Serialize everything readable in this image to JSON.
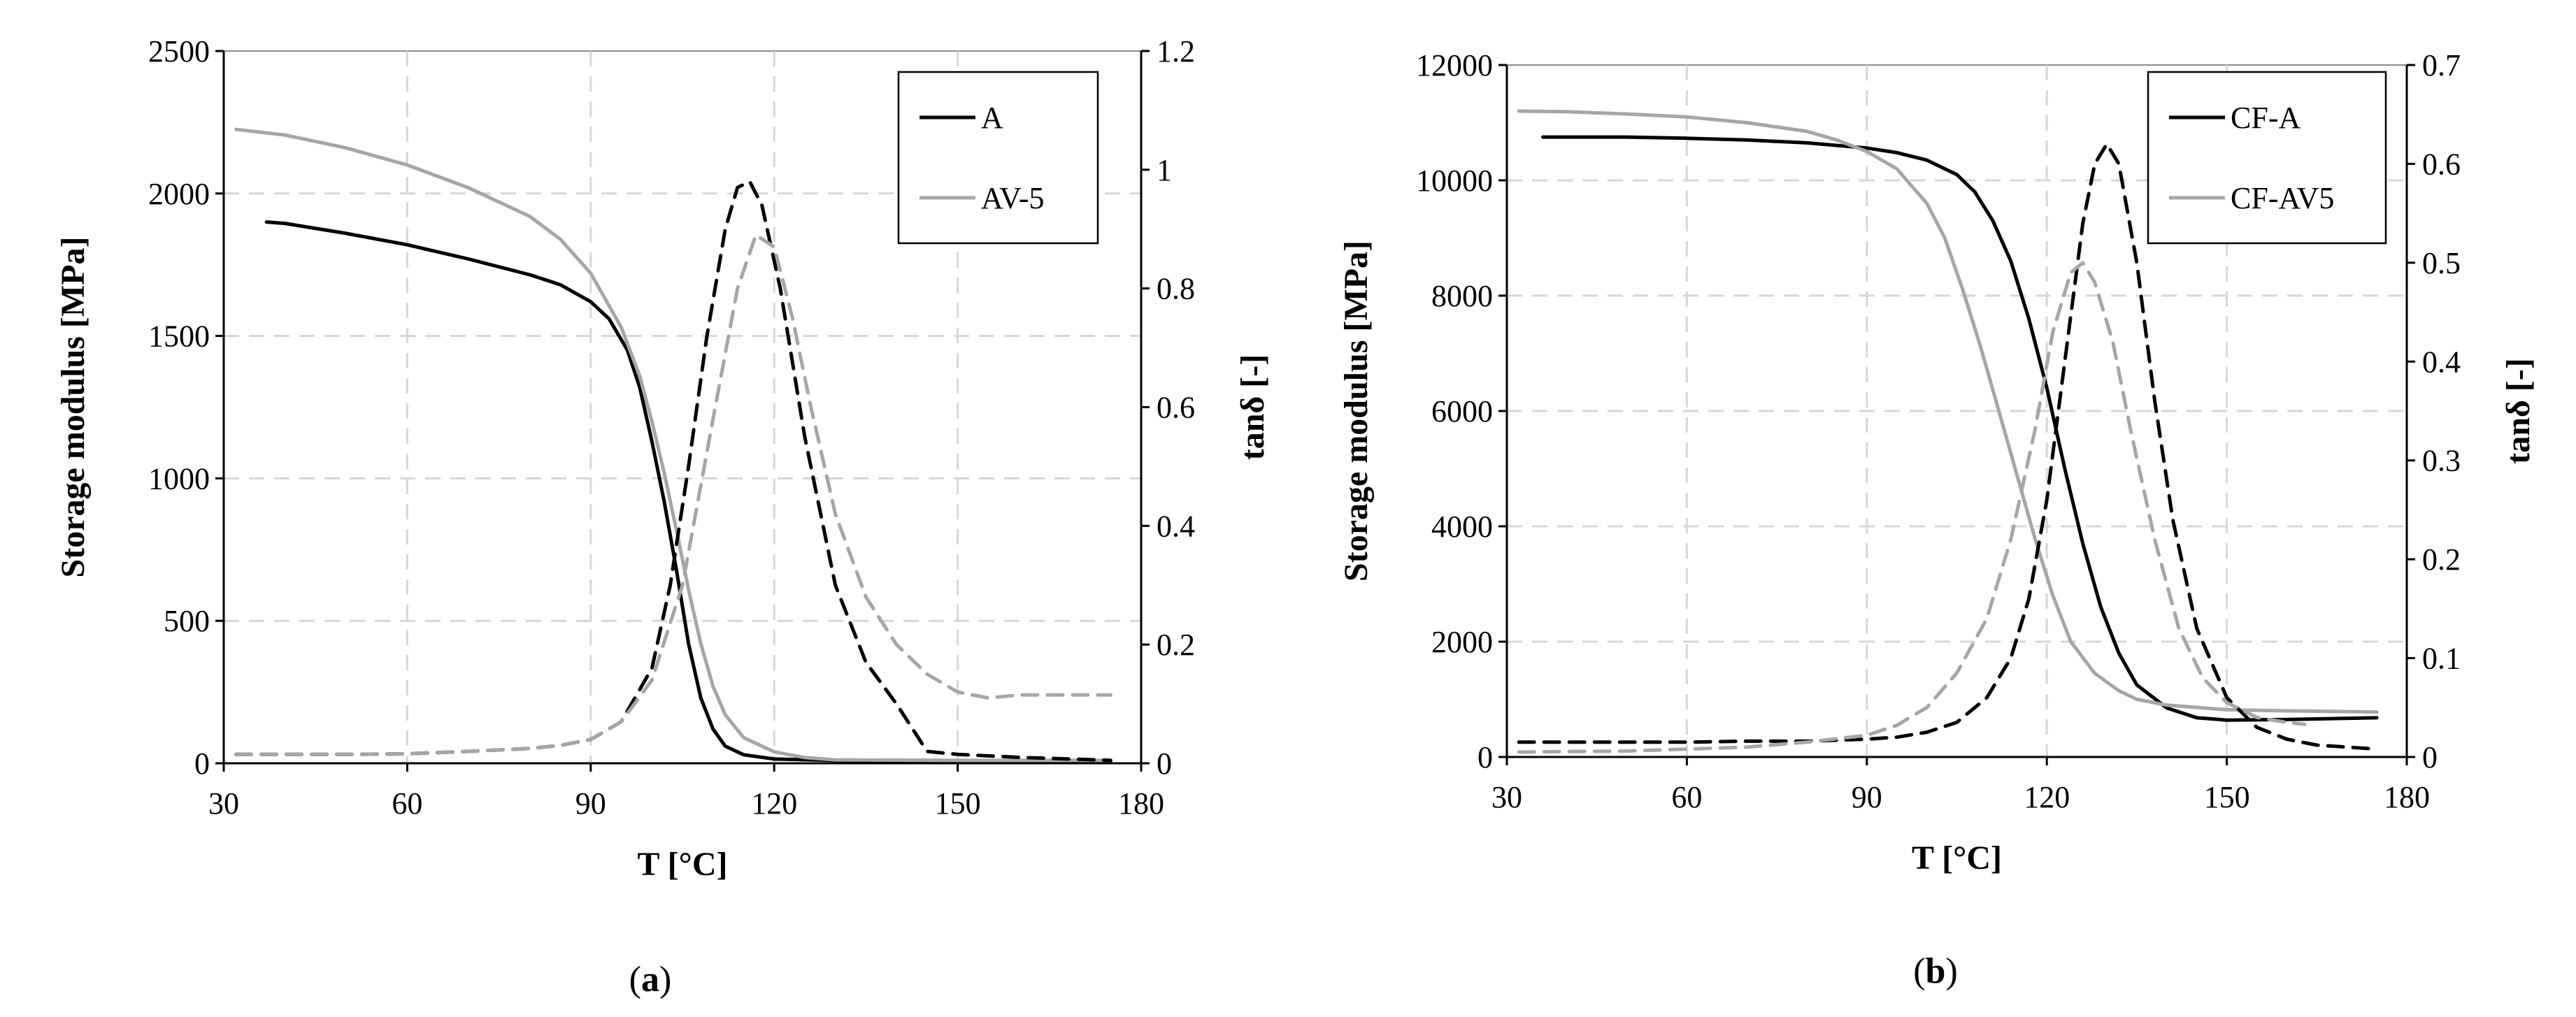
{
  "chart_data": [
    {
      "type": "line",
      "panel_label": "a",
      "xlabel": "T [°C]",
      "ylabel": "Storage modulus [MPa]",
      "y2label": "tanδ [-]",
      "xlim": [
        30,
        180
      ],
      "ylim": [
        0,
        2500
      ],
      "y2lim": [
        0,
        1.2
      ],
      "xticks": [
        "30",
        "60",
        "90",
        "120",
        "150",
        "180"
      ],
      "yticks": [
        "0",
        "500",
        "1000",
        "1500",
        "2000",
        "2500"
      ],
      "y2ticks": [
        "0",
        "0.2",
        "0.4",
        "0.6",
        "0.8",
        "1",
        "1.2"
      ],
      "grid": true,
      "legend_position": "top-right",
      "legend": [
        {
          "name": "A",
          "color": "#000000"
        },
        {
          "name": "AV-5",
          "color": "#a6a6a6"
        }
      ],
      "series": [
        {
          "name": "A",
          "quantity": "storage modulus",
          "axis": "left",
          "color": "#000000",
          "dash": "solid",
          "x": [
            37,
            40,
            50,
            60,
            70,
            80,
            85,
            90,
            93,
            96,
            98,
            100,
            102,
            104,
            106,
            108,
            110,
            112,
            115,
            120,
            130,
            150,
            175
          ],
          "y": [
            1900,
            1895,
            1860,
            1820,
            1770,
            1715,
            1680,
            1620,
            1560,
            1450,
            1320,
            1130,
            920,
            680,
            420,
            230,
            120,
            60,
            30,
            15,
            10,
            8,
            8
          ]
        },
        {
          "name": "AV-5",
          "quantity": "storage modulus",
          "axis": "left",
          "color": "#a6a6a6",
          "dash": "solid",
          "x": [
            32,
            40,
            50,
            60,
            70,
            80,
            85,
            90,
            95,
            98,
            100,
            102,
            104,
            106,
            108,
            110,
            112,
            115,
            120,
            125,
            130,
            150,
            175
          ],
          "y": [
            2225,
            2205,
            2160,
            2100,
            2020,
            1920,
            1840,
            1720,
            1530,
            1360,
            1200,
            1020,
            820,
            610,
            420,
            270,
            170,
            90,
            40,
            20,
            12,
            10,
            10
          ]
        },
        {
          "name": "A",
          "quantity": "tanδ",
          "axis": "right",
          "color": "#000000",
          "dash": "dashed",
          "x": [
            32,
            50,
            60,
            70,
            80,
            85,
            90,
            95,
            100,
            103,
            106,
            109,
            112,
            114,
            116,
            118,
            121,
            125,
            130,
            135,
            140,
            145,
            150,
            160,
            175
          ],
          "y": [
            0.015,
            0.015,
            0.016,
            0.02,
            0.025,
            0.03,
            0.04,
            0.07,
            0.16,
            0.3,
            0.5,
            0.72,
            0.9,
            0.97,
            0.98,
            0.94,
            0.8,
            0.55,
            0.3,
            0.17,
            0.1,
            0.02,
            0.015,
            0.01,
            0.005
          ]
        },
        {
          "name": "AV-5",
          "quantity": "tanδ",
          "axis": "right",
          "color": "#a6a6a6",
          "dash": "dashed",
          "x": [
            32,
            50,
            60,
            70,
            80,
            85,
            90,
            95,
            100,
            105,
            110,
            114,
            117,
            120,
            123,
            126,
            130,
            135,
            140,
            145,
            150,
            155,
            160,
            175
          ],
          "y": [
            0.015,
            0.015,
            0.016,
            0.02,
            0.025,
            0.03,
            0.04,
            0.07,
            0.14,
            0.3,
            0.58,
            0.8,
            0.89,
            0.87,
            0.75,
            0.6,
            0.42,
            0.28,
            0.2,
            0.15,
            0.12,
            0.11,
            0.115,
            0.115
          ]
        }
      ]
    },
    {
      "type": "line",
      "panel_label": "b",
      "xlabel": "T [°C]",
      "ylabel": "Storage modulus [MPa]",
      "y2label": "tanδ [-]",
      "xlim": [
        30,
        180
      ],
      "ylim": [
        0,
        12000
      ],
      "y2lim": [
        0,
        0.7
      ],
      "xticks": [
        "30",
        "60",
        "90",
        "120",
        "150",
        "180"
      ],
      "yticks": [
        "0",
        "2000",
        "4000",
        "6000",
        "8000",
        "10000",
        "12000"
      ],
      "y2ticks": [
        "0",
        "0.1",
        "0.2",
        "0.3",
        "0.4",
        "0.5",
        "0.6",
        "0.7"
      ],
      "grid": true,
      "legend_position": "top-right",
      "legend": [
        {
          "name": "CF-A",
          "color": "#000000"
        },
        {
          "name": "CF-AV5",
          "color": "#a6a6a6"
        }
      ],
      "series": [
        {
          "name": "CF-A",
          "quantity": "storage modulus",
          "axis": "left",
          "color": "#000000",
          "dash": "solid",
          "x": [
            36,
            50,
            60,
            70,
            80,
            90,
            95,
            100,
            105,
            108,
            111,
            114,
            117,
            120,
            123,
            126,
            129,
            132,
            135,
            140,
            145,
            150,
            160,
            175
          ],
          "y": [
            10750,
            10750,
            10730,
            10700,
            10650,
            10560,
            10480,
            10350,
            10100,
            9800,
            9300,
            8600,
            7600,
            6400,
            5000,
            3700,
            2600,
            1800,
            1250,
            850,
            680,
            640,
            650,
            680
          ]
        },
        {
          "name": "CF-AV5",
          "quantity": "storage modulus",
          "axis": "left",
          "color": "#a6a6a6",
          "dash": "solid",
          "x": [
            32,
            40,
            50,
            60,
            70,
            80,
            85,
            90,
            95,
            100,
            103,
            106,
            109,
            112,
            115,
            118,
            121,
            124,
            128,
            132,
            135,
            140,
            150,
            160,
            175
          ],
          "y": [
            11200,
            11190,
            11150,
            11100,
            11000,
            10850,
            10700,
            10500,
            10200,
            9600,
            9000,
            8100,
            7100,
            6000,
            4900,
            3800,
            2800,
            2000,
            1450,
            1150,
            1000,
            900,
            820,
            800,
            780
          ]
        },
        {
          "name": "CF-A",
          "quantity": "tanδ",
          "axis": "right",
          "color": "#000000",
          "dash": "dashed",
          "x": [
            32,
            50,
            60,
            70,
            80,
            90,
            95,
            100,
            105,
            110,
            114,
            117,
            120,
            123,
            126,
            128,
            130,
            132,
            135,
            138,
            141,
            145,
            150,
            155,
            160,
            165,
            175
          ],
          "y": [
            0.015,
            0.015,
            0.015,
            0.016,
            0.016,
            0.018,
            0.02,
            0.025,
            0.035,
            0.06,
            0.1,
            0.16,
            0.26,
            0.4,
            0.54,
            0.6,
            0.62,
            0.6,
            0.5,
            0.36,
            0.24,
            0.13,
            0.06,
            0.03,
            0.018,
            0.012,
            0.008
          ]
        },
        {
          "name": "CF-AV5",
          "quantity": "tanδ",
          "axis": "right",
          "color": "#a6a6a6",
          "dash": "dashed",
          "x": [
            32,
            50,
            60,
            70,
            80,
            90,
            95,
            100,
            105,
            110,
            114,
            118,
            121,
            124,
            126,
            128,
            131,
            134,
            138,
            142,
            146,
            150,
            155,
            160,
            163
          ],
          "y": [
            0.005,
            0.006,
            0.008,
            0.01,
            0.015,
            0.022,
            0.032,
            0.05,
            0.085,
            0.14,
            0.22,
            0.33,
            0.43,
            0.49,
            0.5,
            0.48,
            0.42,
            0.33,
            0.22,
            0.13,
            0.08,
            0.055,
            0.04,
            0.035,
            0.033
          ]
        }
      ]
    }
  ]
}
